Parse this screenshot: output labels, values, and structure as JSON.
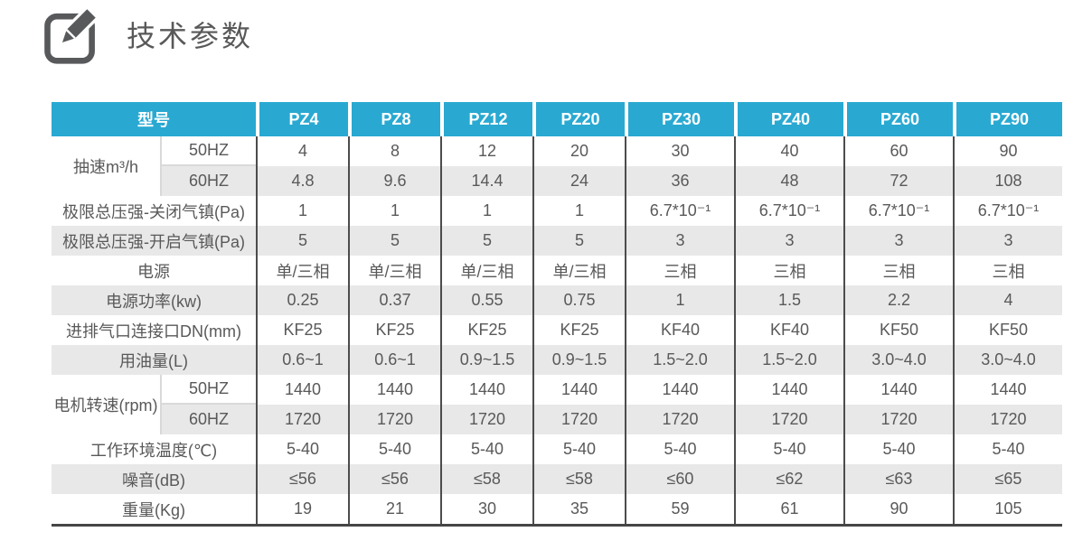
{
  "page": {
    "title": "技术参数"
  },
  "colors": {
    "header_bg": "#29a9d2",
    "header_text": "#ffffff",
    "row_alt_bg": "#e8e8e8",
    "body_text": "#595959",
    "column_border": "#4c4c4c",
    "light_border": "#d9d9d9",
    "icon": "#58595b"
  },
  "table": {
    "header": {
      "model_label": "型号",
      "models": [
        "PZ4",
        "PZ8",
        "PZ12",
        "PZ20",
        "PZ30",
        "PZ40",
        "PZ60",
        "PZ90"
      ]
    },
    "rows": [
      {
        "type": "group",
        "label": "抽速m³/h",
        "subrows": [
          {
            "sub": "50HZ",
            "values": [
              "4",
              "8",
              "12",
              "20",
              "30",
              "40",
              "60",
              "90"
            ]
          },
          {
            "sub": "60HZ",
            "values": [
              "4.8",
              "9.6",
              "14.4",
              "24",
              "36",
              "48",
              "72",
              "108"
            ]
          }
        ]
      },
      {
        "type": "simple",
        "label": "极限总压强-关闭气镇(Pa)",
        "values": [
          "1",
          "1",
          "1",
          "1",
          "6.7*10⁻¹",
          "6.7*10⁻¹",
          "6.7*10⁻¹",
          "6.7*10⁻¹"
        ]
      },
      {
        "type": "simple",
        "label": "极限总压强-开启气镇(Pa)",
        "values": [
          "5",
          "5",
          "5",
          "5",
          "3",
          "3",
          "3",
          "3"
        ]
      },
      {
        "type": "simple",
        "label": "电源",
        "values": [
          "单/三相",
          "单/三相",
          "单/三相",
          "单/三相",
          "三相",
          "三相",
          "三相",
          "三相"
        ]
      },
      {
        "type": "simple",
        "label": "电源功率(kw)",
        "values": [
          "0.25",
          "0.37",
          "0.55",
          "0.75",
          "1",
          "1.5",
          "2.2",
          "4"
        ]
      },
      {
        "type": "simple",
        "label": "进排气口连接口DN(mm)",
        "values": [
          "KF25",
          "KF25",
          "KF25",
          "KF25",
          "KF40",
          "KF40",
          "KF50",
          "KF50"
        ]
      },
      {
        "type": "simple",
        "label": "用油量(L)",
        "values": [
          "0.6~1",
          "0.6~1",
          "0.9~1.5",
          "0.9~1.5",
          "1.5~2.0",
          "1.5~2.0",
          "3.0~4.0",
          "3.0~4.0"
        ]
      },
      {
        "type": "group",
        "label": "电机转速(rpm)",
        "subrows": [
          {
            "sub": "50HZ",
            "values": [
              "1440",
              "1440",
              "1440",
              "1440",
              "1440",
              "1440",
              "1440",
              "1440"
            ]
          },
          {
            "sub": "60HZ",
            "values": [
              "1720",
              "1720",
              "1720",
              "1720",
              "1720",
              "1720",
              "1720",
              "1720"
            ]
          }
        ]
      },
      {
        "type": "simple",
        "label": "工作环境温度(℃)",
        "values": [
          "5-40",
          "5-40",
          "5-40",
          "5-40",
          "5-40",
          "5-40",
          "5-40",
          "5-40"
        ]
      },
      {
        "type": "simple",
        "label": "噪音(dB)",
        "values": [
          "≤56",
          "≤56",
          "≤58",
          "≤58",
          "≤60",
          "≤62",
          "≤63",
          "≤65"
        ]
      },
      {
        "type": "simple",
        "label": "重量(Kg)",
        "values": [
          "19",
          "21",
          "30",
          "35",
          "59",
          "61",
          "90",
          "105"
        ]
      }
    ]
  }
}
